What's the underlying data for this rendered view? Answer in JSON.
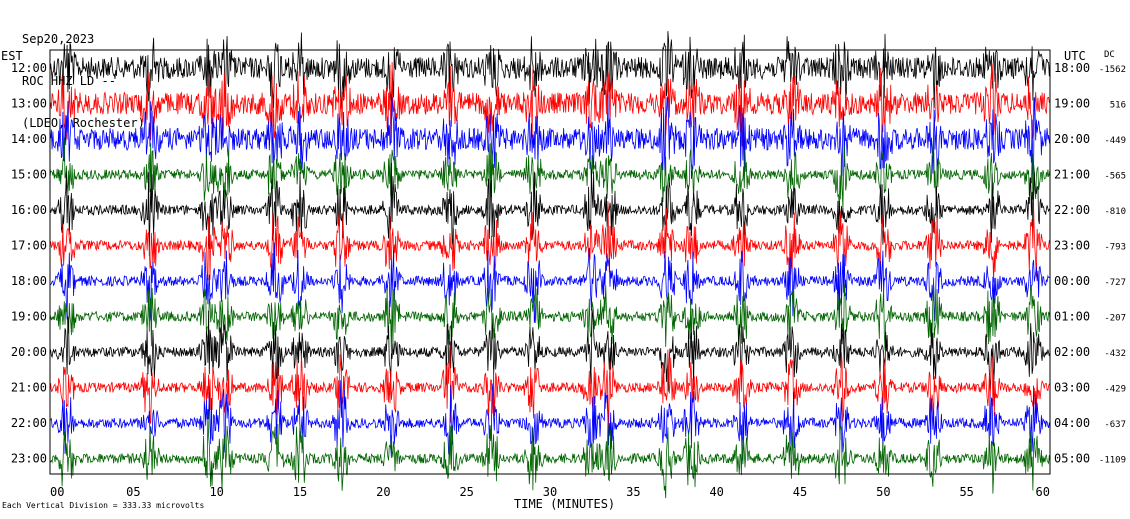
{
  "header": {
    "date": "Sep20,2023",
    "station": "ROC HHZ LD --",
    "network": "(LDEO, Rochester)"
  },
  "footer": {
    "scale_note": "Each Vertical Division = 333.33 microvolts"
  },
  "chart_data": {
    "type": "line",
    "title": "",
    "xlabel": "TIME (MINUTES)",
    "x_left_label": "EST",
    "y_right_label": "UTC",
    "dc_label": "DC",
    "xlim": [
      0,
      60
    ],
    "x_ticks": [
      "00",
      "05",
      "10",
      "15",
      "20",
      "25",
      "30",
      "35",
      "40",
      "45",
      "50",
      "55",
      "60"
    ],
    "rows": [
      {
        "local": "12:00",
        "utc": "18:00",
        "dc": "-1562",
        "color": "#000000"
      },
      {
        "local": "13:00",
        "utc": "19:00",
        "dc": "516",
        "color": "#ff0000"
      },
      {
        "local": "14:00",
        "utc": "20:00",
        "dc": "-449",
        "color": "#0000ff"
      },
      {
        "local": "15:00",
        "utc": "21:00",
        "dc": "-565",
        "color": "#006400"
      },
      {
        "local": "16:00",
        "utc": "22:00",
        "dc": "-810",
        "color": "#000000"
      },
      {
        "local": "17:00",
        "utc": "23:00",
        "dc": "-793",
        "color": "#ff0000"
      },
      {
        "local": "18:00",
        "utc": "00:00",
        "dc": "-727",
        "color": "#0000ff"
      },
      {
        "local": "19:00",
        "utc": "01:00",
        "dc": "-207",
        "color": "#006400"
      },
      {
        "local": "20:00",
        "utc": "02:00",
        "dc": "-432",
        "color": "#000000"
      },
      {
        "local": "21:00",
        "utc": "03:00",
        "dc": "-429",
        "color": "#ff0000"
      },
      {
        "local": "22:00",
        "utc": "04:00",
        "dc": "-637",
        "color": "#0000ff"
      },
      {
        "local": "23:00",
        "utc": "05:00",
        "dc": "-1109",
        "color": "#006400"
      }
    ],
    "trace_colors": [
      "#000000",
      "#ff0000",
      "#0000ff",
      "#006400"
    ],
    "grid": false
  }
}
